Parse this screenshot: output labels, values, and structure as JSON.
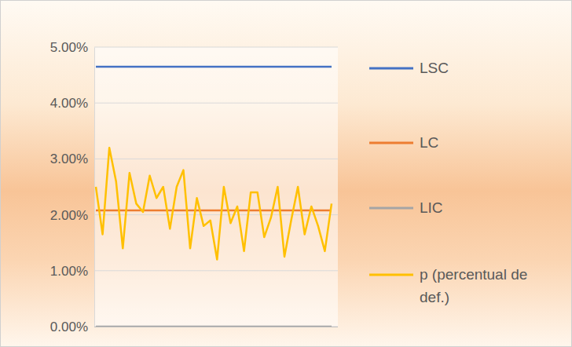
{
  "chart_data": {
    "type": "line",
    "categories": [
      null,
      null,
      null,
      null,
      null,
      null,
      null,
      null,
      null,
      null,
      null,
      null,
      null,
      null,
      null,
      null,
      null,
      null,
      null,
      null,
      null,
      null,
      null,
      null,
      null,
      null,
      null,
      null,
      null,
      null,
      null,
      null,
      null,
      null,
      null,
      null
    ],
    "series": [
      {
        "name": "LSC",
        "color": "#4472c4",
        "values": [
          4.65,
          4.65,
          4.65,
          4.65,
          4.65,
          4.65,
          4.65,
          4.65,
          4.65,
          4.65,
          4.65,
          4.65,
          4.65,
          4.65,
          4.65,
          4.65,
          4.65,
          4.65,
          4.65,
          4.65,
          4.65,
          4.65,
          4.65,
          4.65,
          4.65,
          4.65,
          4.65,
          4.65,
          4.65,
          4.65,
          4.65,
          4.65,
          4.65,
          4.65,
          4.65,
          4.65
        ]
      },
      {
        "name": "LC",
        "color": "#ed7d31",
        "values": [
          2.08,
          2.08,
          2.08,
          2.08,
          2.08,
          2.08,
          2.08,
          2.08,
          2.08,
          2.08,
          2.08,
          2.08,
          2.08,
          2.08,
          2.08,
          2.08,
          2.08,
          2.08,
          2.08,
          2.08,
          2.08,
          2.08,
          2.08,
          2.08,
          2.08,
          2.08,
          2.08,
          2.08,
          2.08,
          2.08,
          2.08,
          2.08,
          2.08,
          2.08,
          2.08,
          2.08
        ]
      },
      {
        "name": "LIC",
        "color": "#a5a5a5",
        "values": [
          0,
          0,
          0,
          0,
          0,
          0,
          0,
          0,
          0,
          0,
          0,
          0,
          0,
          0,
          0,
          0,
          0,
          0,
          0,
          0,
          0,
          0,
          0,
          0,
          0,
          0,
          0,
          0,
          0,
          0,
          0,
          0,
          0,
          0,
          0,
          0
        ]
      },
      {
        "name": "p (percentual de def.)",
        "color": "#ffc000",
        "values": [
          2.5,
          1.65,
          3.2,
          2.6,
          1.4,
          2.75,
          2.2,
          2.05,
          2.7,
          2.3,
          2.5,
          1.75,
          2.5,
          2.8,
          1.4,
          2.3,
          1.8,
          1.9,
          1.2,
          2.5,
          1.85,
          2.15,
          1.35,
          2.4,
          2.4,
          1.6,
          1.95,
          2.5,
          1.25,
          1.9,
          2.5,
          1.65,
          2.15,
          1.8,
          1.35,
          2.2
        ]
      }
    ],
    "ylim": [
      0,
      5
    ],
    "yticks": [
      {
        "value": 0,
        "label": "0.00%"
      },
      {
        "value": 1,
        "label": "1.00%"
      },
      {
        "value": 2,
        "label": "2.00%"
      },
      {
        "value": 3,
        "label": "3.00%"
      },
      {
        "value": 4,
        "label": "4.00%"
      },
      {
        "value": 5,
        "label": "5.00%"
      }
    ],
    "grid": true,
    "legend": "right",
    "tick_labels": "y"
  }
}
